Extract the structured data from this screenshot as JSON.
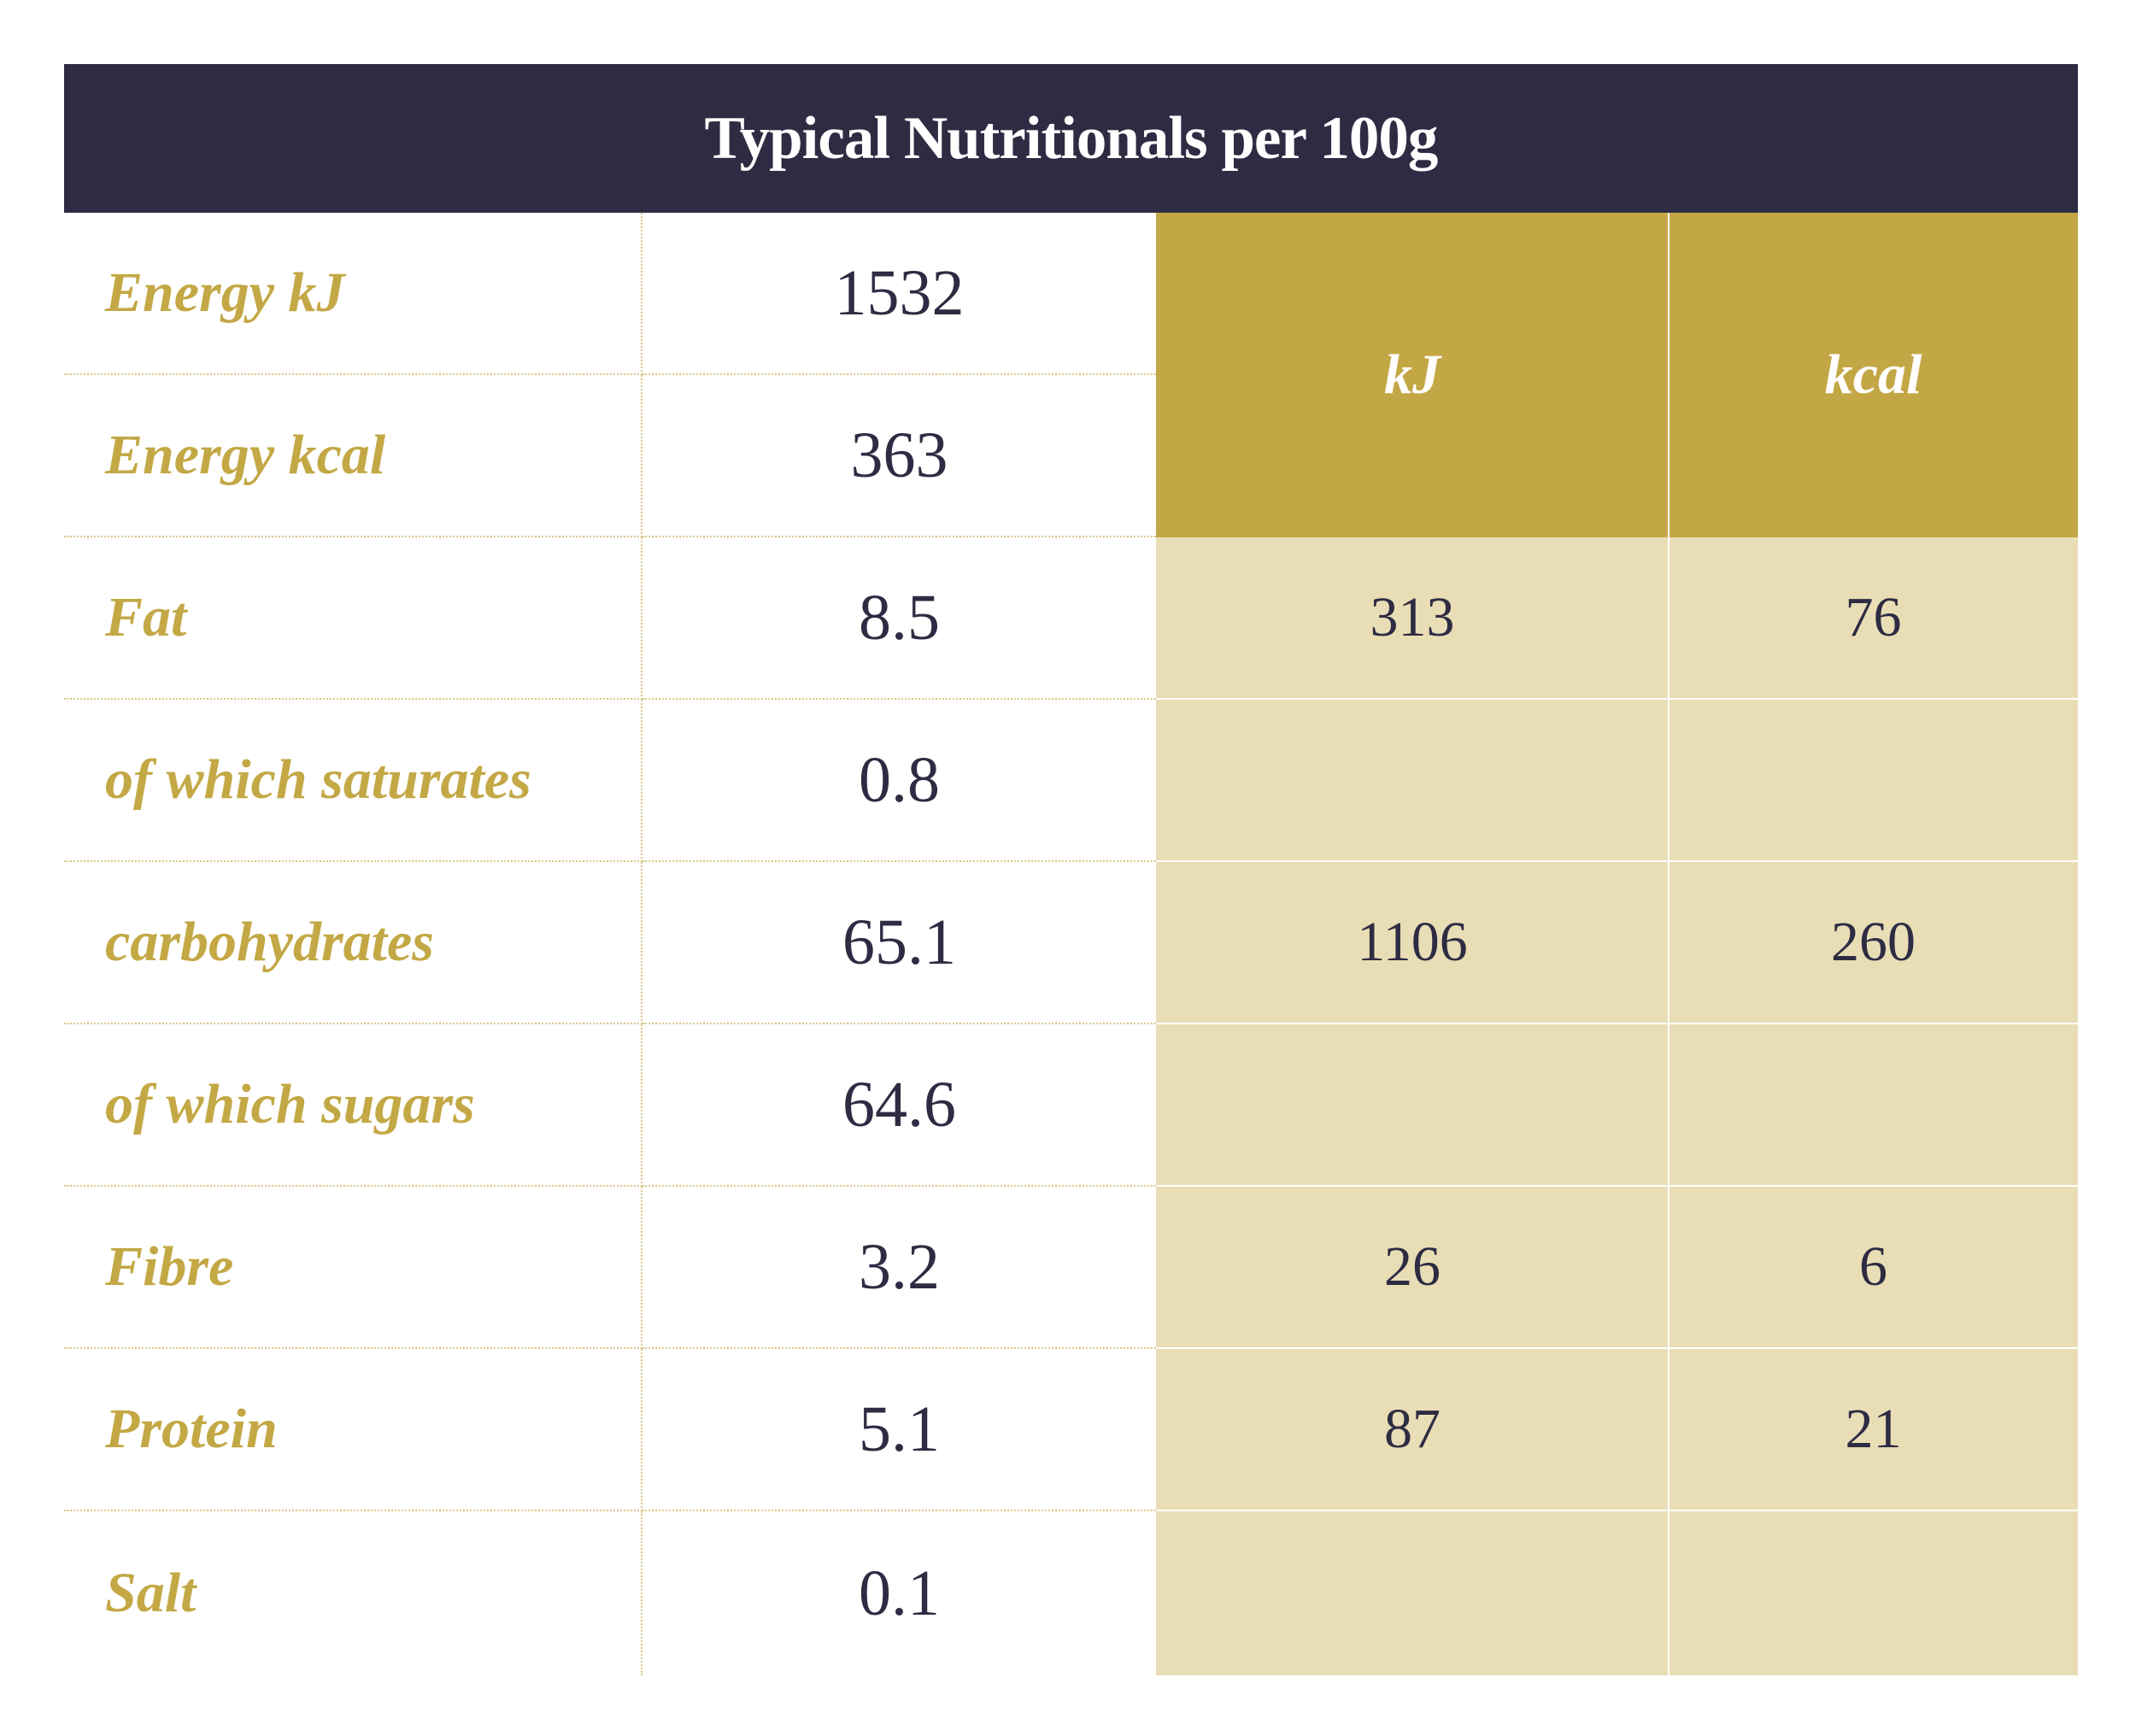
{
  "title": "Typical Nutritionals per 100g",
  "sub_headers": {
    "kj": "kJ",
    "kcal": "kcal"
  },
  "rows": [
    {
      "label": "Energy kJ",
      "value": "1532"
    },
    {
      "label": "Energy kcal",
      "value": "363"
    },
    {
      "label": "Fat",
      "value": "8.5",
      "kj": "313",
      "kcal": "76"
    },
    {
      "label": "of which saturates",
      "value": "0.8",
      "kj": "",
      "kcal": ""
    },
    {
      "label": "carbohydrates",
      "value": "65.1",
      "kj": "1106",
      "kcal": "260"
    },
    {
      "label": "of which sugars",
      "value": "64.6",
      "kj": "",
      "kcal": ""
    },
    {
      "label": "Fibre",
      "value": "3.2",
      "kj": "26",
      "kcal": "6"
    },
    {
      "label": "Protein",
      "value": "5.1",
      "kj": "87",
      "kcal": "21"
    },
    {
      "label": "Salt",
      "value": "0.1",
      "kj": "",
      "kcal": ""
    }
  ],
  "colors": {
    "header_bg": "#2e2c43",
    "gold": "#c4a745",
    "light_gold": "#e9ddb6",
    "text_dark": "#2e2c43"
  }
}
